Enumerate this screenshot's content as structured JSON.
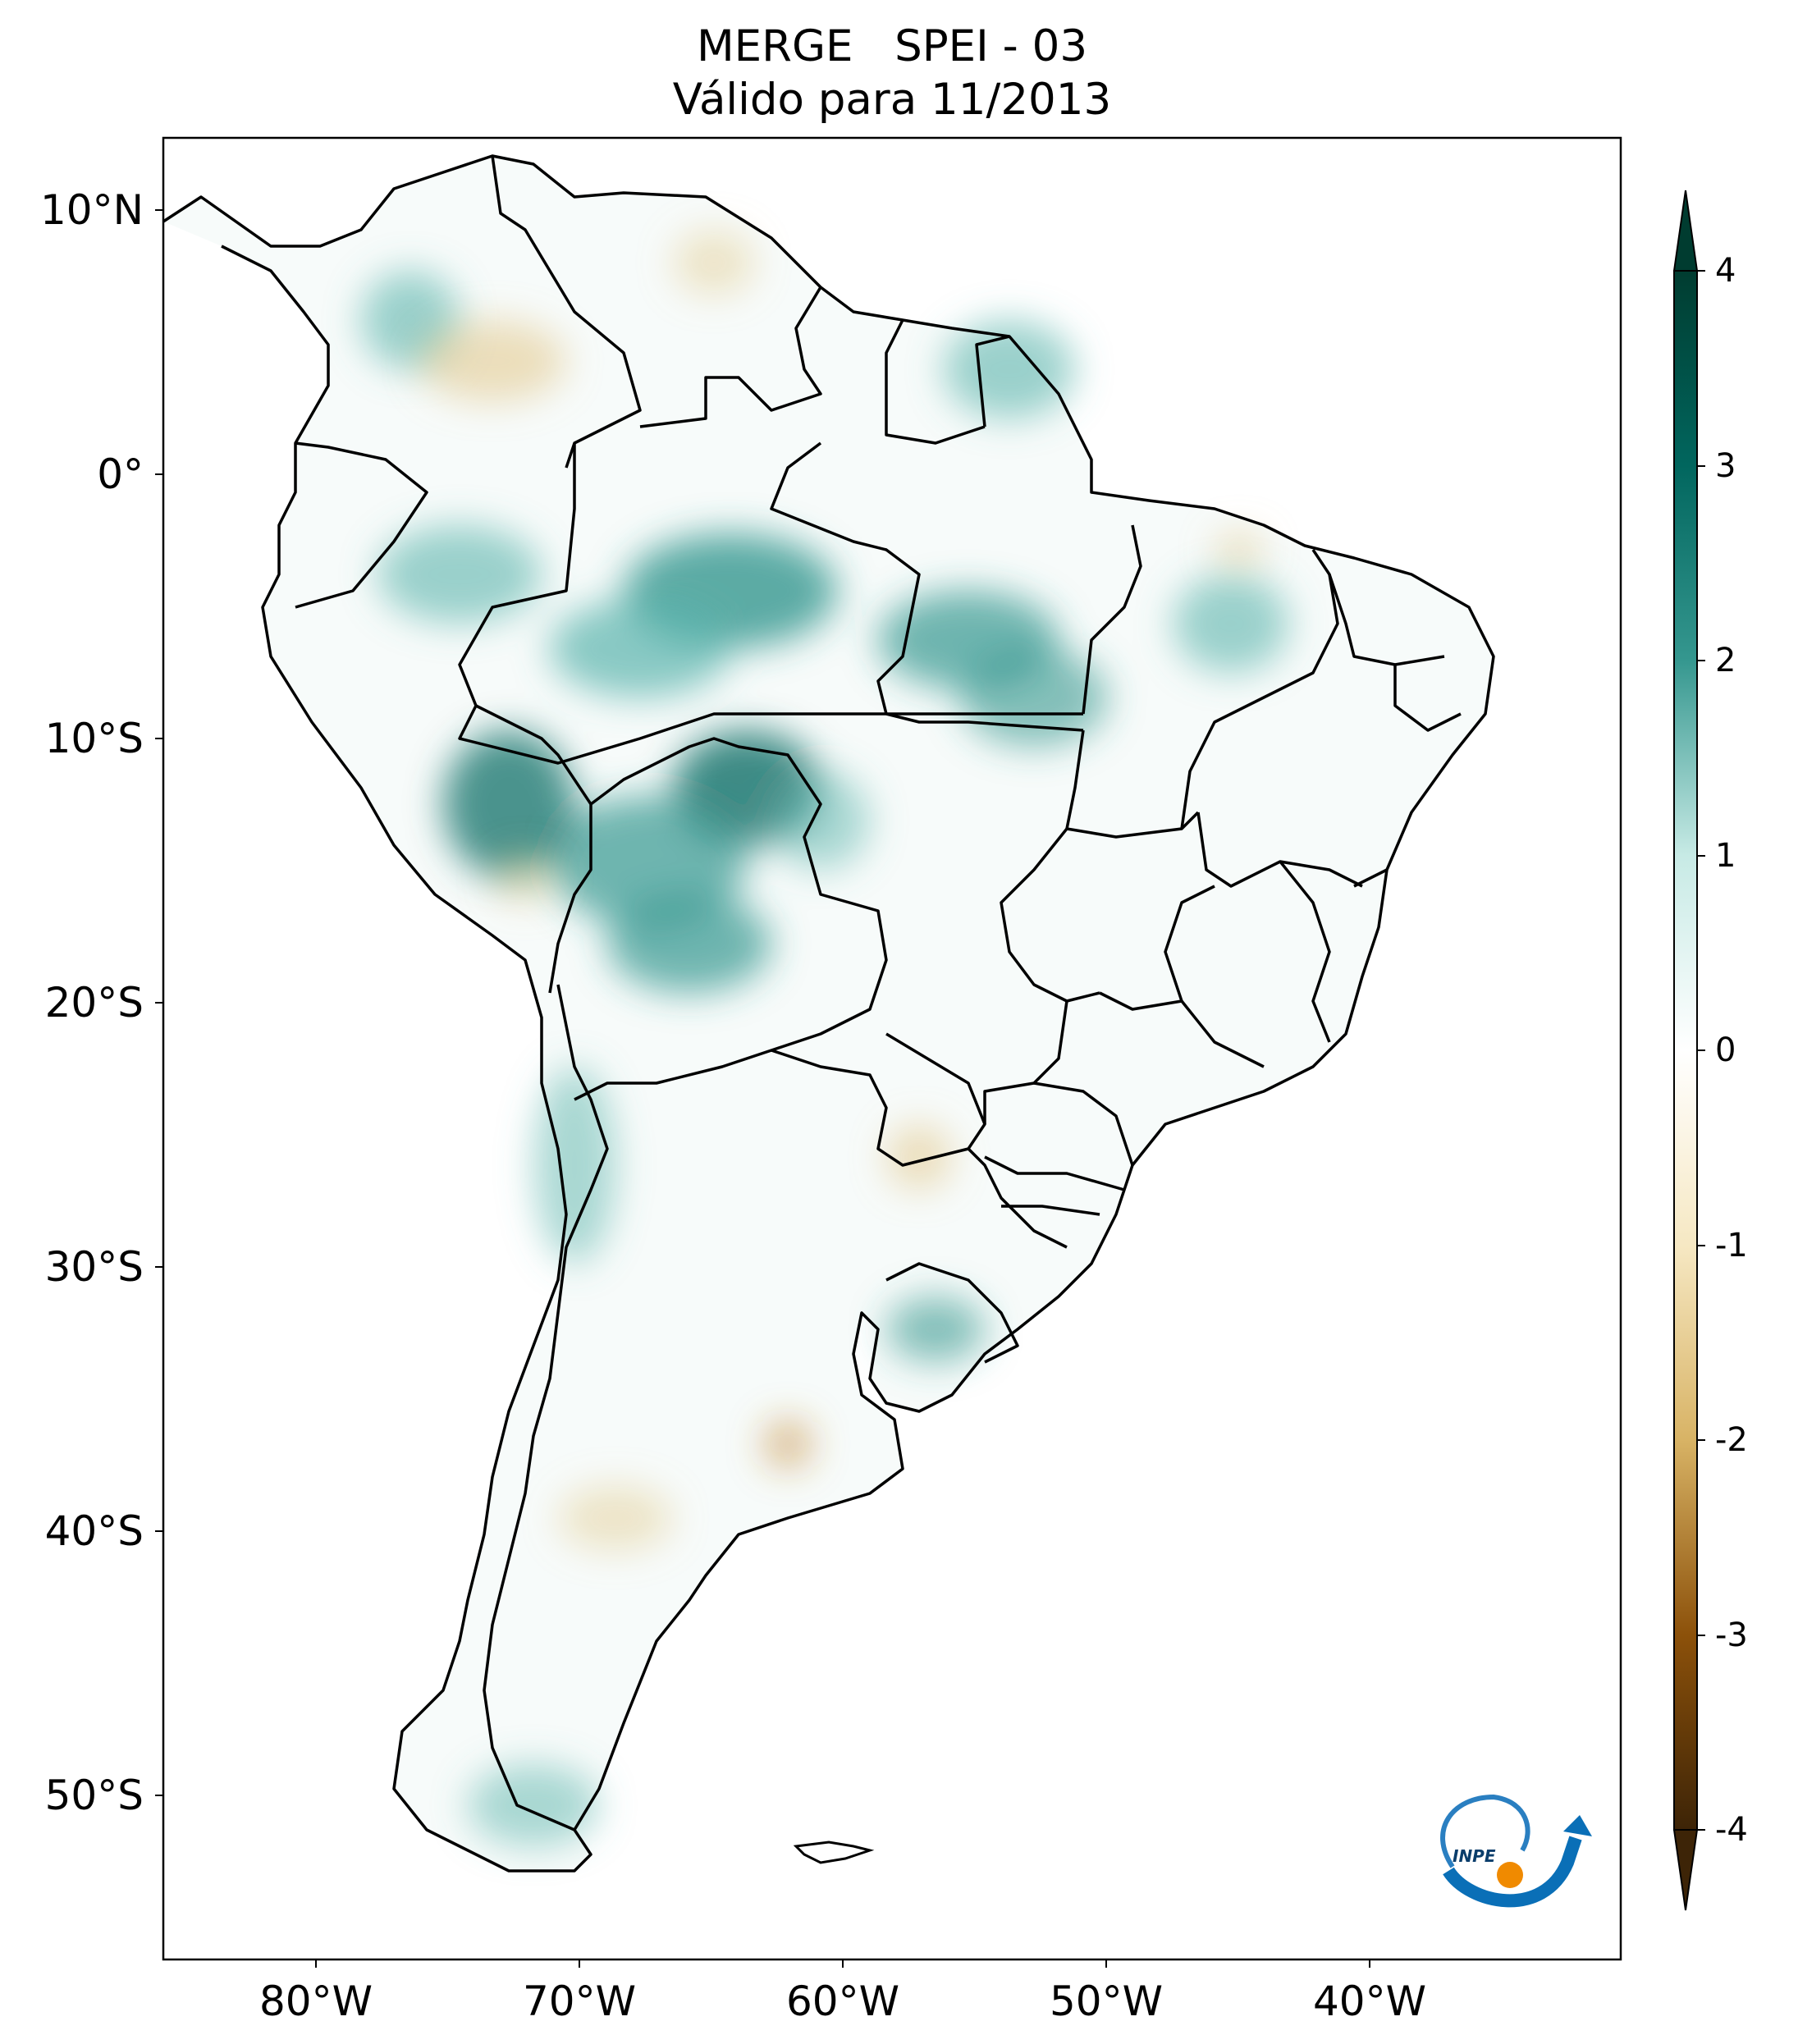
{
  "title": {
    "line1": "MERGE   SPEI - 03",
    "line2": "Válido para 11/2013"
  },
  "axes": {
    "lat_ticks": [
      "10°N",
      "0°",
      "10°S",
      "20°S",
      "30°S",
      "40°S",
      "50°S"
    ],
    "lon_ticks": [
      "80°W",
      "70°W",
      "60°W",
      "50°W",
      "40°W"
    ]
  },
  "colorbar": {
    "ticks": [
      "4",
      "3",
      "2",
      "1",
      "0",
      "-1",
      "-2",
      "-3",
      "-4"
    ],
    "colors": {
      "dry_extreme": "#3d2407",
      "dry_strong": "#8c510a",
      "dry_moderate": "#d8b365",
      "dry_mild": "#f6e8c3",
      "neutral": "#ffffff",
      "wet_mild": "#c7eae5",
      "wet_moderate": "#5ab4ac",
      "wet_strong": "#01665e",
      "wet_extreme": "#003c30"
    }
  },
  "logo": {
    "text": "INPE"
  }
}
